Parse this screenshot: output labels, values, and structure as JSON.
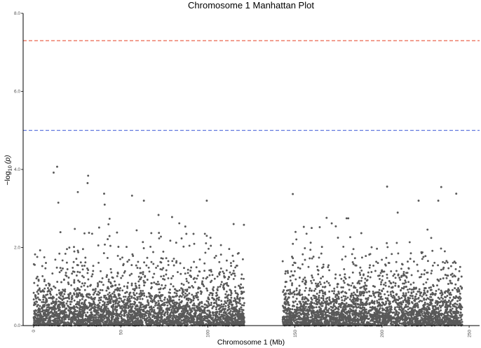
{
  "chart_data": {
    "type": "scatter",
    "title": "Chromosome 1 Manhattan Plot",
    "xlabel": "Chromosome 1 (Mb)",
    "ylabel_prefix": "−log",
    "ylabel_subscript": "10",
    "ylabel_suffix": "(p)",
    "xlim": [
      -6,
      256
    ],
    "ylim": [
      0,
      8
    ],
    "x_ticks": [
      {
        "value": 0,
        "label": "0"
      },
      {
        "value": 50,
        "label": "50"
      },
      {
        "value": 100,
        "label": "100"
      },
      {
        "value": 150,
        "label": "150"
      },
      {
        "value": 200,
        "label": "200"
      },
      {
        "value": 250,
        "label": "250"
      }
    ],
    "y_ticks": [
      {
        "value": 0,
        "label": "0.0"
      },
      {
        "value": 2,
        "label": "2.0"
      },
      {
        "value": 4,
        "label": "4.0"
      },
      {
        "value": 6,
        "label": "6.0"
      },
      {
        "value": 8,
        "label": "8.0"
      }
    ],
    "grid": false,
    "legend": "none",
    "thresholds": [
      {
        "value": 7.3,
        "color": "#e8533a",
        "style": "dashed"
      },
      {
        "value": 5.0,
        "color": "#3a58d6",
        "style": "dashed"
      }
    ],
    "point_color": "#595959",
    "data_regions": [
      {
        "x": [
          0,
          121
        ],
        "approx_points": 3400
      },
      {
        "x": [
          143,
          246
        ],
        "approx_points": 3000
      }
    ],
    "gap_region": [
      121,
      143
    ],
    "notable_points": [
      {
        "x": 11.5,
        "y": 3.92
      },
      {
        "x": 13.5,
        "y": 4.07
      },
      {
        "x": 14.2,
        "y": 3.15
      },
      {
        "x": 25.4,
        "y": 3.42
      },
      {
        "x": 31.3,
        "y": 3.84
      },
      {
        "x": 31.0,
        "y": 3.65
      },
      {
        "x": 40.5,
        "y": 3.38
      },
      {
        "x": 40.8,
        "y": 3.1
      },
      {
        "x": 56.5,
        "y": 3.33
      },
      {
        "x": 63.3,
        "y": 3.2
      },
      {
        "x": 79.5,
        "y": 2.78
      },
      {
        "x": 99.4,
        "y": 3.2
      },
      {
        "x": 114.8,
        "y": 2.6
      },
      {
        "x": 148.8,
        "y": 3.37
      },
      {
        "x": 202.9,
        "y": 3.56
      },
      {
        "x": 234.0,
        "y": 3.55
      },
      {
        "x": 242.6,
        "y": 3.38
      },
      {
        "x": 221.0,
        "y": 3.2
      },
      {
        "x": 232.3,
        "y": 3.2
      }
    ]
  }
}
